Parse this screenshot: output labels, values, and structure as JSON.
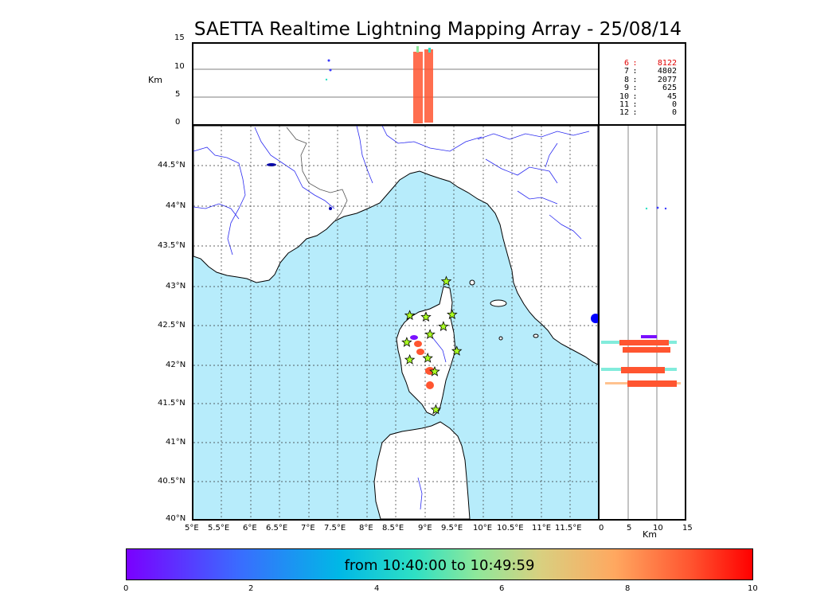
{
  "title": "SAETTA Realtime Lightning Mapping Array - 25/08/14",
  "altitude_axis": {
    "unit": "Km",
    "ticks": [
      "15",
      "10",
      "5",
      "0"
    ]
  },
  "map": {
    "lat_ticks": [
      "44.5°N",
      "44°N",
      "43.5°N",
      "43°N",
      "42.5°N",
      "42°N",
      "41.5°N",
      "41°N",
      "40.5°N",
      "40°N"
    ],
    "lon_ticks": [
      "5°E",
      "5.5°E",
      "6°E",
      "6.5°E",
      "7°E",
      "7.5°E",
      "8°E",
      "8.5°E",
      "9°E",
      "9.5°E",
      "10°E",
      "10.5°E",
      "11°E",
      "11.5°E"
    ],
    "colors": {
      "sea": "#b7ecfb",
      "land": "#ffffff",
      "rivers": "#2a2af0",
      "border": "#555555",
      "coast": "#000000",
      "station_fill": "#aaff22"
    },
    "stations": [
      {
        "lon": 9.35,
        "lat": 43.0
      },
      {
        "lon": 8.72,
        "lat": 42.57
      },
      {
        "lon": 9.0,
        "lat": 42.55
      },
      {
        "lon": 9.45,
        "lat": 42.58
      },
      {
        "lon": 9.3,
        "lat": 42.43
      },
      {
        "lon": 9.07,
        "lat": 42.33
      },
      {
        "lon": 8.67,
        "lat": 42.23
      },
      {
        "lon": 9.53,
        "lat": 42.12
      },
      {
        "lon": 9.03,
        "lat": 42.03
      },
      {
        "lon": 8.72,
        "lat": 42.01
      },
      {
        "lon": 9.15,
        "lat": 41.86
      },
      {
        "lon": 9.17,
        "lat": 41.38
      }
    ]
  },
  "side_axis": {
    "unit": "Km",
    "ticks": [
      "0",
      "5",
      "10",
      "15"
    ]
  },
  "stats": [
    {
      "level": "6",
      "sep": ":",
      "count": "8122",
      "highlight": true
    },
    {
      "level": "7",
      "sep": ":",
      "count": "4802",
      "highlight": false
    },
    {
      "level": "8",
      "sep": ":",
      "count": "2077",
      "highlight": false
    },
    {
      "level": "9",
      "sep": ":",
      "count": "625",
      "highlight": false
    },
    {
      "level": "10",
      "sep": ":",
      "count": "45",
      "highlight": false
    },
    {
      "level": "11",
      "sep": ":",
      "count": "0",
      "highlight": false
    },
    {
      "level": "12",
      "sep": ":",
      "count": "0",
      "highlight": false
    }
  ],
  "colorbar": {
    "label": "from 10:40:00 to 10:49:59",
    "ticks": [
      "0",
      "2",
      "4",
      "6",
      "8",
      "10"
    ]
  }
}
